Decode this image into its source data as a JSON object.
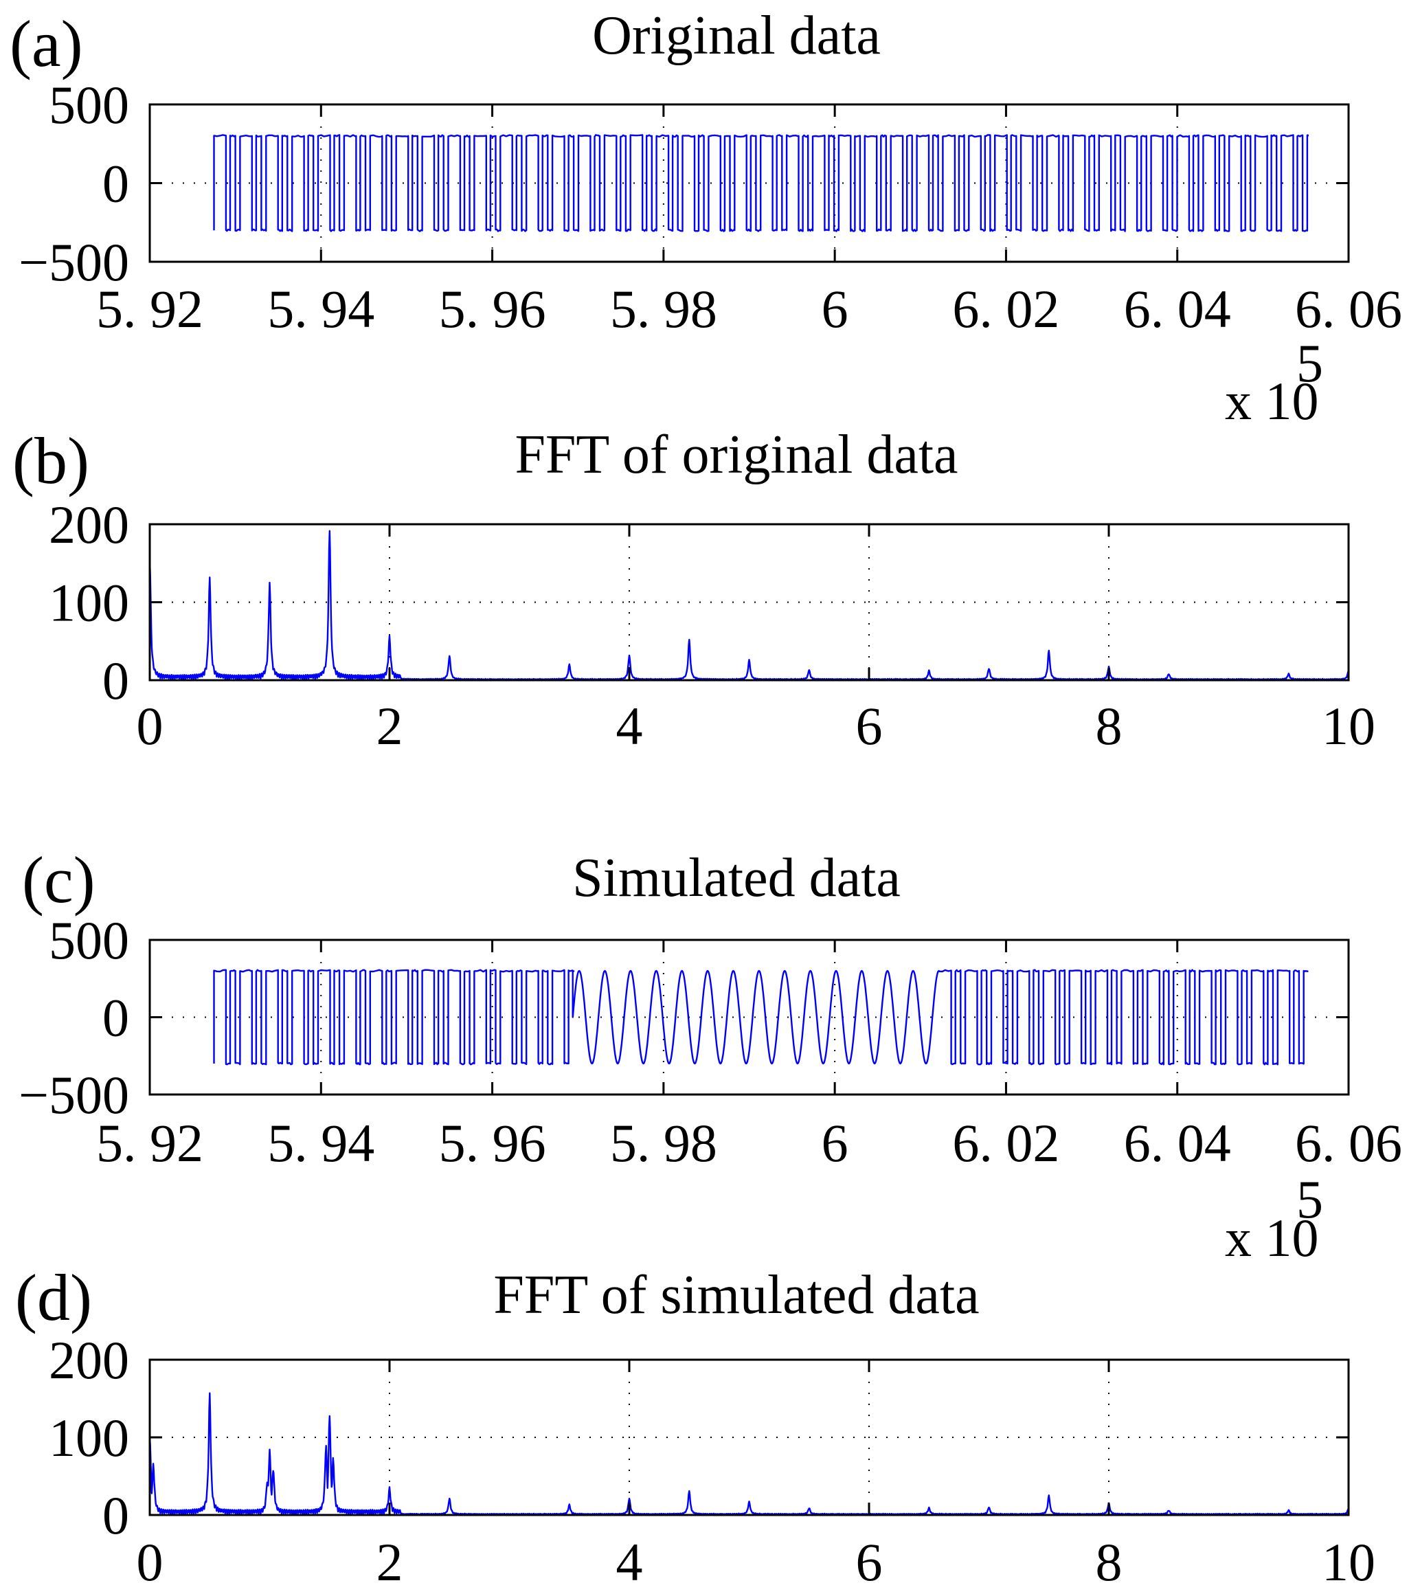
{
  "chart_data": [
    {
      "id": "a",
      "type": "line",
      "panel_label": "(a)",
      "title": "Original data",
      "xlabel": "",
      "ylabel": "",
      "x_multiplier_label": "x 10",
      "x_multiplier_exponent": "5",
      "xlim": [
        5.92,
        6.06
      ],
      "ylim": [
        -500,
        500
      ],
      "xticks": [
        5.92,
        5.94,
        5.96,
        5.98,
        6.0,
        6.02,
        6.04,
        6.06
      ],
      "xtick_labels": [
        "5. 92",
        "5. 94",
        "5. 96",
        "5. 98",
        "6",
        "6. 02",
        "6. 04",
        "6. 06"
      ],
      "yticks": [
        -500,
        0,
        500
      ],
      "ytick_labels": [
        "−500",
        "0",
        "500"
      ],
      "grid": true,
      "color": "#0000ff",
      "signal": {
        "kind": "pulse-train",
        "start": 5.9275,
        "end": 6.0553,
        "amplitude": 300,
        "period": 0.00304,
        "segments_in_period": [
          {
            "level": "high",
            "fraction": 0.46
          },
          {
            "level": "low",
            "fraction": 0.16
          },
          {
            "level": "high",
            "fraction": 0.2
          },
          {
            "level": "low",
            "fraction": 0.18
          }
        ]
      }
    },
    {
      "id": "b",
      "type": "line",
      "panel_label": "(b)",
      "title": "FFT of original data",
      "xlabel": "",
      "ylabel": "",
      "xlim": [
        0,
        10
      ],
      "ylim": [
        0,
        200
      ],
      "xticks": [
        0,
        2,
        4,
        6,
        8,
        10
      ],
      "xtick_labels": [
        "0",
        "2",
        "4",
        "6",
        "8",
        "10"
      ],
      "yticks": [
        0,
        100,
        200
      ],
      "ytick_labels": [
        "0",
        "100",
        "200"
      ],
      "grid": true,
      "color": "#0000ff",
      "peaks": [
        {
          "x": 0.0,
          "y": 153
        },
        {
          "x": 0.5,
          "y": 126
        },
        {
          "x": 1.0,
          "y": 120
        },
        {
          "x": 1.5,
          "y": 190
        },
        {
          "x": 2.0,
          "y": 51
        },
        {
          "x": 2.5,
          "y": 30
        },
        {
          "x": 3.5,
          "y": 19
        },
        {
          "x": 4.0,
          "y": 31
        },
        {
          "x": 4.5,
          "y": 51
        },
        {
          "x": 5.0,
          "y": 25
        },
        {
          "x": 5.5,
          "y": 12
        },
        {
          "x": 6.5,
          "y": 11
        },
        {
          "x": 7.0,
          "y": 14
        },
        {
          "x": 7.5,
          "y": 37
        },
        {
          "x": 8.0,
          "y": 16
        },
        {
          "x": 8.5,
          "y": 7
        },
        {
          "x": 9.5,
          "y": 7
        },
        {
          "x": 10.0,
          "y": 11
        }
      ]
    },
    {
      "id": "c",
      "type": "line",
      "panel_label": "(c)",
      "title": "Simulated data",
      "xlabel": "",
      "ylabel": "",
      "x_multiplier_label": "x 10",
      "x_multiplier_exponent": "5",
      "xlim": [
        5.92,
        6.06
      ],
      "ylim": [
        -500,
        500
      ],
      "xticks": [
        5.92,
        5.94,
        5.96,
        5.98,
        6.0,
        6.02,
        6.04,
        6.06
      ],
      "xtick_labels": [
        "5. 92",
        "5. 94",
        "5. 96",
        "5. 98",
        "6",
        "6. 02",
        "6. 04",
        "6. 06"
      ],
      "yticks": [
        -500,
        0,
        500
      ],
      "ytick_labels": [
        "−500",
        "0",
        "500"
      ],
      "grid": true,
      "color": "#0000ff",
      "signal": {
        "kind": "pulse-train-with-sine-insert",
        "start": 5.9275,
        "end": 6.0553,
        "amplitude": 300,
        "period": 0.00304,
        "segments_in_period": [
          {
            "level": "high",
            "fraction": 0.46
          },
          {
            "level": "low",
            "fraction": 0.16
          },
          {
            "level": "high",
            "fraction": 0.2
          },
          {
            "level": "low",
            "fraction": 0.18
          }
        ],
        "sine_start": 5.9694,
        "sine_end": 6.0122,
        "sine_period": 0.003
      }
    },
    {
      "id": "d",
      "type": "line",
      "panel_label": "(d)",
      "title": "FFT of simulated data",
      "xlabel": "",
      "ylabel": "",
      "xlim": [
        0,
        10
      ],
      "ylim": [
        0,
        200
      ],
      "xticks": [
        0,
        2,
        4,
        6,
        8,
        10
      ],
      "xtick_labels": [
        "0",
        "2",
        "4",
        "6",
        "8",
        "10"
      ],
      "yticks": [
        0,
        100,
        200
      ],
      "ytick_labels": [
        "0",
        "100",
        "200"
      ],
      "grid": true,
      "color": "#0000ff",
      "peaks": [
        {
          "x": 0.0,
          "y": 100
        },
        {
          "x": 0.03,
          "y": 61
        },
        {
          "x": 0.5,
          "y": 151
        },
        {
          "x": 0.98,
          "y": 40
        },
        {
          "x": 1.0,
          "y": 79
        },
        {
          "x": 1.03,
          "y": 56
        },
        {
          "x": 1.47,
          "y": 85
        },
        {
          "x": 1.5,
          "y": 126
        },
        {
          "x": 1.53,
          "y": 68
        },
        {
          "x": 2.0,
          "y": 30
        },
        {
          "x": 2.5,
          "y": 20
        },
        {
          "x": 3.5,
          "y": 12
        },
        {
          "x": 4.0,
          "y": 20
        },
        {
          "x": 4.5,
          "y": 30
        },
        {
          "x": 5.0,
          "y": 16
        },
        {
          "x": 5.5,
          "y": 8
        },
        {
          "x": 6.5,
          "y": 8
        },
        {
          "x": 7.0,
          "y": 9
        },
        {
          "x": 7.5,
          "y": 24
        },
        {
          "x": 8.0,
          "y": 14
        },
        {
          "x": 8.5,
          "y": 5
        },
        {
          "x": 9.5,
          "y": 5
        },
        {
          "x": 10.0,
          "y": 7
        }
      ]
    }
  ]
}
